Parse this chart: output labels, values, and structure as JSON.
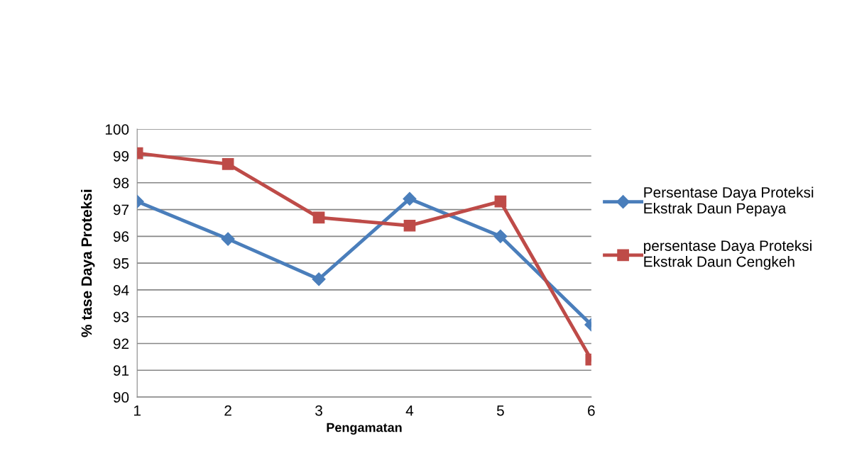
{
  "chart_data": {
    "type": "line",
    "xlabel": "Pengamatan",
    "ylabel": "% tase Daya Proteksi",
    "x": [
      1,
      2,
      3,
      4,
      5,
      6
    ],
    "xlim": [
      1,
      6
    ],
    "xticks": [
      1,
      2,
      3,
      4,
      5,
      6
    ],
    "ylim": [
      90,
      100
    ],
    "yticks": [
      90,
      91,
      92,
      93,
      94,
      95,
      96,
      97,
      98,
      99,
      100
    ],
    "grid": "y",
    "legend": "right",
    "series": [
      {
        "name": "Persentase Daya Proteksi Ekstrak Daun Pepaya",
        "color": "#4a7ebb",
        "marker": "diamond",
        "values": [
          97.3,
          95.9,
          94.4,
          97.4,
          96.0,
          92.7
        ]
      },
      {
        "name": "persentase Daya Proteksi Ekstrak Daun Cengkeh",
        "color": "#be4b48",
        "marker": "square",
        "values": [
          99.1,
          98.7,
          96.7,
          96.4,
          97.3,
          91.4
        ]
      }
    ]
  }
}
